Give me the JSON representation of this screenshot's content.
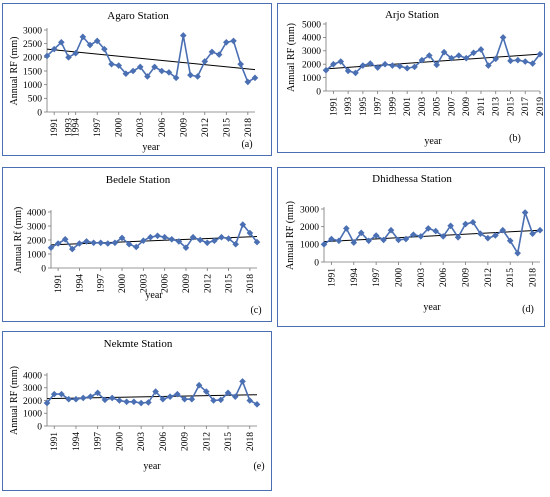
{
  "chart_data": [
    {
      "type": "line",
      "title": "Agaro Station",
      "xlabel": "year",
      "ylabel": "Annual RF (mm)",
      "panel_label": "(a)",
      "categories": [
        "1991",
        "1993",
        "1994",
        "1997",
        "2000",
        "2003",
        "2006",
        "2009",
        "2012",
        "2015",
        "2018"
      ],
      "x": [
        1990,
        1991,
        1992,
        1993,
        1994,
        1995,
        1996,
        1997,
        1998,
        1999,
        2000,
        2001,
        2002,
        2003,
        2004,
        2005,
        2006,
        2007,
        2008,
        2009,
        2010,
        2011,
        2012,
        2013,
        2014,
        2015,
        2016,
        2017,
        2018,
        2019
      ],
      "series": [
        {
          "values": [
            2050,
            2300,
            2550,
            2000,
            2150,
            2750,
            2450,
            2600,
            2300,
            1750,
            1700,
            1400,
            1500,
            1650,
            1300,
            1650,
            1500,
            1450,
            1250,
            2800,
            1350,
            1300,
            1850,
            2200,
            2100,
            2550,
            2600,
            1750,
            1100,
            1250
          ]
        }
      ],
      "trend": {
        "start": 2300,
        "end": 1550
      },
      "ylim": [
        0,
        3000
      ],
      "yticks": [
        0,
        500,
        1000,
        1500,
        2000,
        2500,
        3000
      ],
      "color": "#4a6fb3"
    },
    {
      "type": "line",
      "title": "Arjo Station",
      "xlabel": "year",
      "ylabel": "Annual RF (mm)",
      "panel_label": "(b)",
      "categories": [
        "1991",
        "1993",
        "1995",
        "1997",
        "1999",
        "2001",
        "2003",
        "2005",
        "2007",
        "2009",
        "2011",
        "2013",
        "2015",
        "2017",
        "2019"
      ],
      "x": [
        1990,
        1991,
        1992,
        1993,
        1994,
        1995,
        1996,
        1997,
        1998,
        1999,
        2000,
        2001,
        2002,
        2003,
        2004,
        2005,
        2006,
        2007,
        2008,
        2009,
        2010,
        2011,
        2012,
        2013,
        2014,
        2015,
        2016,
        2017,
        2018,
        2019
      ],
      "series": [
        {
          "values": [
            1550,
            2000,
            2200,
            1500,
            1350,
            1900,
            2050,
            1750,
            2000,
            1900,
            1850,
            1700,
            1800,
            2300,
            2650,
            1950,
            2900,
            2450,
            2650,
            2450,
            2850,
            3100,
            1900,
            2400,
            4000,
            2250,
            2300,
            2200,
            2050,
            2750
          ]
        }
      ],
      "trend": {
        "start": 1650,
        "end": 2750
      },
      "ylim": [
        0,
        5000
      ],
      "yticks": [
        0,
        1000,
        2000,
        3000,
        4000,
        5000
      ],
      "color": "#4a6fb3"
    },
    {
      "type": "line",
      "title": "Bedele Station",
      "xlabel": "year",
      "ylabel": "Annual Rf (mm)",
      "panel_label": "(c)",
      "categories": [
        "1991",
        "1994",
        "1997",
        "2000",
        "2003",
        "2006",
        "2009",
        "2012",
        "2015",
        "2018"
      ],
      "x": [
        1990,
        1991,
        1992,
        1993,
        1994,
        1995,
        1996,
        1997,
        1998,
        1999,
        2000,
        2001,
        2002,
        2003,
        2004,
        2005,
        2006,
        2007,
        2008,
        2009,
        2010,
        2011,
        2012,
        2013,
        2014,
        2015,
        2016,
        2017,
        2018,
        2019
      ],
      "series": [
        {
          "values": [
            1450,
            1750,
            2050,
            1350,
            1750,
            1900,
            1800,
            1800,
            1750,
            1800,
            2150,
            1700,
            1500,
            1950,
            2200,
            2300,
            2200,
            2050,
            1900,
            1450,
            2200,
            2000,
            1800,
            1950,
            2200,
            2100,
            1700,
            3100,
            2500,
            1850
          ]
        }
      ],
      "trend": {
        "start": 1650,
        "end": 2250
      },
      "ylim": [
        0,
        4000
      ],
      "yticks": [
        0,
        1000,
        2000,
        3000,
        4000
      ],
      "color": "#4a6fb3"
    },
    {
      "type": "line",
      "title": "Dhidhessa Station",
      "xlabel": "year",
      "ylabel": "Annual RF (mm)",
      "panel_label": "(d)",
      "categories": [
        "1991",
        "1994",
        "1997",
        "2000",
        "2003",
        "2006",
        "2009",
        "2012",
        "2015",
        "2018"
      ],
      "x": [
        1990,
        1991,
        1992,
        1993,
        1994,
        1995,
        1996,
        1997,
        1998,
        1999,
        2000,
        2001,
        2002,
        2003,
        2004,
        2005,
        2006,
        2007,
        2008,
        2009,
        2010,
        2011,
        2012,
        2013,
        2014,
        2015,
        2016,
        2017,
        2018,
        2019
      ],
      "series": [
        {
          "values": [
            1000,
            1300,
            1200,
            1900,
            1100,
            1650,
            1200,
            1500,
            1250,
            1800,
            1250,
            1300,
            1550,
            1450,
            1900,
            1750,
            1450,
            2050,
            1400,
            2150,
            2250,
            1600,
            1350,
            1500,
            1800,
            1200,
            500,
            2800,
            1600,
            1800
          ]
        }
      ],
      "trend": {
        "start": 1150,
        "end": 1800
      },
      "ylim": [
        0,
        3000
      ],
      "yticks": [
        0,
        1000,
        2000,
        3000
      ],
      "color": "#4a6fb3"
    },
    {
      "type": "line",
      "title": "Nekmte Station",
      "xlabel": "year",
      "ylabel": "Annual RF (mm)",
      "panel_label": "(e)",
      "categories": [
        "1991",
        "1994",
        "1997",
        "2000",
        "2003",
        "2006",
        "2009",
        "2012",
        "2015",
        "2018"
      ],
      "x": [
        1990,
        1991,
        1992,
        1993,
        1994,
        1995,
        1996,
        1997,
        1998,
        1999,
        2000,
        2001,
        2002,
        2003,
        2004,
        2005,
        2006,
        2007,
        2008,
        2009,
        2010,
        2011,
        2012,
        2013,
        2014,
        2015,
        2016,
        2017,
        2018,
        2019
      ],
      "series": [
        {
          "values": [
            1800,
            2500,
            2500,
            2100,
            2100,
            2200,
            2300,
            2600,
            2050,
            2200,
            2000,
            1900,
            1900,
            1800,
            1850,
            2700,
            2100,
            2300,
            2500,
            2100,
            2100,
            3200,
            2700,
            2000,
            2050,
            2600,
            2300,
            3500,
            2000,
            1700
          ]
        }
      ],
      "trend": {
        "start": 2150,
        "end": 2450
      },
      "ylim": [
        0,
        4000
      ],
      "yticks": [
        0,
        1000,
        2000,
        3000,
        4000
      ],
      "color": "#4a6fb3"
    }
  ]
}
